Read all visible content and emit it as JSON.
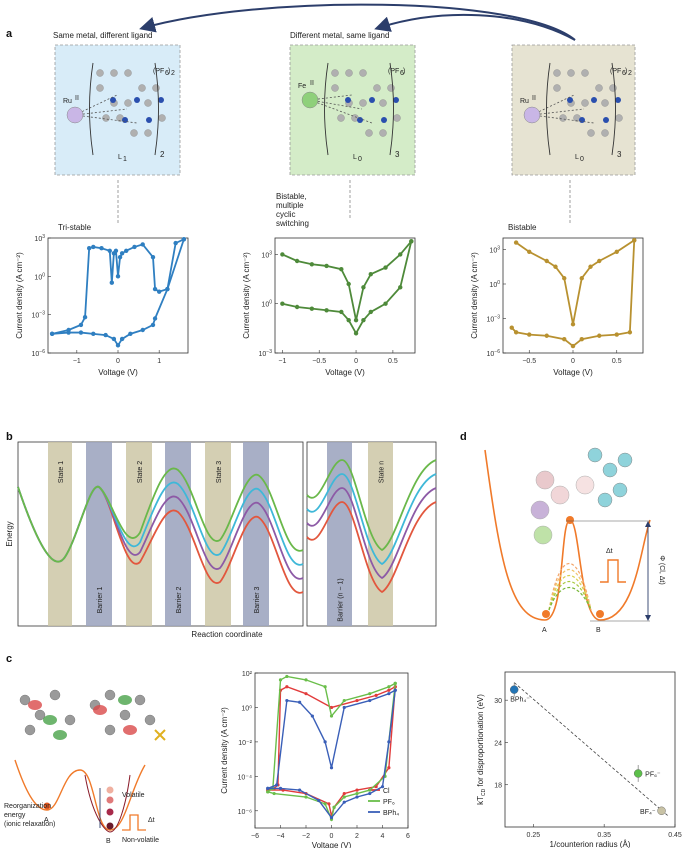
{
  "panels": {
    "a": "a",
    "b": "b",
    "c": "c",
    "d": "d"
  },
  "panel_a": {
    "top_left_title": "Same metal, different ligand",
    "top_mid_title": "Different metal, same ligand",
    "complexes": [
      {
        "metal": "Ru",
        "metal_ox": "II",
        "counter": "(PF",
        "counter_sub": "6",
        "counter_tail": ")",
        "counter_n": "2",
        "ligand": "L",
        "ligand_sub": "1",
        "n": "2",
        "bg": "#d8ecf8",
        "ball": "#c9b6e6"
      },
      {
        "metal": "Fe",
        "metal_ox": "II",
        "counter": "(PF",
        "counter_sub": "6",
        "counter_tail": ")",
        "counter_n": "",
        "ligand": "L",
        "ligand_sub": "0",
        "n": "3",
        "bg": "#d4ecc8",
        "ball": "#8ed07a"
      },
      {
        "metal": "Ru",
        "metal_ox": "II",
        "counter": "(PF",
        "counter_sub": "6",
        "counter_tail": ")",
        "counter_n": "2",
        "ligand": "L",
        "ligand_sub": "0",
        "n": "3",
        "bg": "#e6e3d2",
        "ball": "#c9b6e6"
      }
    ],
    "chart_labels": [
      "Tri-stable",
      "Bistable,\nmultiple\ncyclic\nswitching",
      "Bistable"
    ],
    "label_lines_mid": [
      "Bistable,",
      "multiple",
      "cyclic",
      "switching"
    ]
  },
  "chart_data": [
    {
      "type": "line",
      "title": "Tri-stable",
      "xlabel": "Voltage (V)",
      "ylabel": "Current density (A cm⁻²)",
      "xlim": [
        -1.7,
        1.7
      ],
      "xticks": [
        -1,
        0,
        1
      ],
      "xtick_labels": [
        "−1",
        "0",
        "1"
      ],
      "ylog": true,
      "ylim_exp": [
        -6,
        3
      ],
      "ytick_exps": [
        3,
        0,
        -3,
        -6
      ],
      "color": "#2f7fc1",
      "x": [
        -1.6,
        -1.2,
        -0.9,
        -0.8,
        -0.7,
        -0.6,
        -0.4,
        -0.2,
        -0.15,
        -0.1,
        -0.05,
        0,
        0.05,
        0.1,
        0.2,
        0.4,
        0.6,
        0.85,
        0.9,
        1.0,
        1.2,
        1.4,
        1.6
      ],
      "y_exp": [
        -4.5,
        -4.2,
        -3.8,
        -3.2,
        2.2,
        2.3,
        2.2,
        2.0,
        -0.5,
        1.8,
        2.0,
        0.0,
        1.5,
        1.8,
        2.0,
        2.3,
        2.5,
        1.5,
        -1.0,
        -1.2,
        -1.0,
        2.6,
        2.9
      ],
      "ret_x": [
        1.6,
        1.2,
        0.9,
        0.85,
        0.6,
        0.3,
        0.1,
        0,
        -0.1,
        -0.3,
        -0.6,
        -0.9,
        -1.2,
        -1.6
      ],
      "ret_y_exp": [
        2.9,
        -1.0,
        -3.3,
        -3.8,
        -4.2,
        -4.5,
        -4.9,
        -5.4,
        -4.9,
        -4.6,
        -4.5,
        -4.4,
        -4.4,
        -4.5
      ]
    },
    {
      "type": "line",
      "title": "Bistable, multiple cyclic switching",
      "xlabel": "Voltage (V)",
      "ylabel": "Current density (A cm⁻²)",
      "xlim": [
        -1.1,
        0.8
      ],
      "xticks": [
        -1,
        -0.5,
        0,
        0.5
      ],
      "xtick_labels": [
        "−1",
        "−0.5",
        "0",
        "0.5"
      ],
      "ylog": true,
      "ylim_exp": [
        -3,
        4
      ],
      "ytick_exps": [
        3,
        0,
        -3
      ],
      "color": "#4e8a3a",
      "x": [
        -1.0,
        -0.8,
        -0.6,
        -0.4,
        -0.2,
        -0.1,
        0,
        0.1,
        0.2,
        0.4,
        0.6,
        0.75
      ],
      "y_exp": [
        3.0,
        2.6,
        2.4,
        2.3,
        2.1,
        1.2,
        -1.0,
        1.0,
        1.8,
        2.2,
        3.0,
        3.8
      ],
      "ret_x": [
        0.75,
        0.6,
        0.4,
        0.2,
        0.1,
        0,
        -0.1,
        -0.2,
        -0.4,
        -0.6,
        -0.8,
        -1.0
      ],
      "ret_y_exp": [
        3.8,
        1.0,
        0.0,
        -0.5,
        -1.0,
        -1.8,
        -1.0,
        -0.5,
        -0.4,
        -0.3,
        -0.2,
        0.0
      ]
    },
    {
      "type": "line",
      "title": "Bistable",
      "xlabel": "Voltage (V)",
      "ylabel": "Current density (A cm⁻²)",
      "xlim": [
        -0.8,
        0.8
      ],
      "xticks": [
        -0.5,
        0,
        0.5
      ],
      "xtick_labels": [
        "−0.5",
        "0",
        "0.5"
      ],
      "ylog": true,
      "ylim_exp": [
        -6,
        4
      ],
      "ytick_exps": [
        3,
        0,
        -3,
        -6
      ],
      "color": "#b89130",
      "x": [
        -0.65,
        -0.5,
        -0.3,
        -0.2,
        -0.1,
        0,
        0.1,
        0.2,
        0.3,
        0.5,
        0.7
      ],
      "y_exp": [
        3.6,
        2.8,
        2.0,
        1.5,
        0.5,
        -3.5,
        0.5,
        1.5,
        2.0,
        2.8,
        3.8
      ],
      "ret_x": [
        0.7,
        0.65,
        0.5,
        0.3,
        0.1,
        0,
        -0.1,
        -0.3,
        -0.5,
        -0.65,
        -0.7
      ],
      "ret_y_exp": [
        3.8,
        -4.2,
        -4.4,
        -4.5,
        -4.8,
        -5.4,
        -4.8,
        -4.5,
        -4.4,
        -4.2,
        -3.8
      ]
    },
    {
      "type": "line",
      "xlabel": "Voltage (V)",
      "ylabel": "Current density (A cm⁻²)",
      "xlim": [
        -6,
        6
      ],
      "xticks": [
        -6,
        -4,
        -2,
        0,
        2,
        4,
        6
      ],
      "xtick_labels": [
        "−6",
        "−4",
        "−2",
        "0",
        "2",
        "4",
        "6"
      ],
      "ylog": true,
      "ylim_exp": [
        -7,
        2
      ],
      "ytick_exps": [
        2,
        -2,
        -6
      ],
      "ytick_labels": [
        "10²",
        "10⁻²",
        "10⁻⁶"
      ],
      "ytick_exps_minor": [
        0,
        -4
      ],
      "ytick_labels_minor": [
        "10⁰",
        "10⁻⁴"
      ],
      "series": [
        {
          "name": "Cl",
          "color": "#e23b3b",
          "x": [
            -5,
            -4.5,
            -4.2,
            -4.0,
            -3.5,
            -2,
            0,
            2,
            3.5,
            4.5,
            5
          ],
          "y": [
            -4.8,
            -4.7,
            -4.5,
            1.0,
            1.2,
            0.8,
            0.0,
            0.4,
            0.7,
            1.0,
            1.2
          ],
          "rx": [
            5,
            4.5,
            3.5,
            2,
            1,
            0.2,
            0,
            -0.2,
            -2,
            -3.8,
            -5
          ],
          "ry": [
            1.2,
            -3.5,
            -4.6,
            -4.8,
            -5.0,
            -5.8,
            -6.3,
            -5.6,
            -5.0,
            -4.8,
            -4.8
          ]
        },
        {
          "name": "PF₆",
          "color": "#6abe4a",
          "x": [
            -5,
            -4.6,
            -4.0,
            -3.5,
            -2,
            -0.5,
            0,
            1,
            3,
            4.5,
            5
          ],
          "y": [
            -4.9,
            -4.7,
            1.6,
            1.8,
            1.6,
            1.2,
            -0.5,
            0.4,
            0.8,
            1.2,
            1.4
          ],
          "rx": [
            5,
            4.2,
            3,
            2,
            1,
            0.2,
            0,
            -0.5,
            -2,
            -4.5,
            -5
          ],
          "ry": [
            1.4,
            -4.0,
            -4.8,
            -5.0,
            -5.2,
            -5.8,
            -6.5,
            -5.6,
            -5.2,
            -5.0,
            -4.9
          ]
        },
        {
          "name": "BPh₄",
          "color": "#3a5fb8",
          "x": [
            -5,
            -4.3,
            -3.5,
            -2.5,
            -1.5,
            -0.5,
            0,
            1,
            3,
            4.5,
            5
          ],
          "y": [
            -4.7,
            -4.5,
            0.4,
            0.3,
            -0.5,
            -2.0,
            -3.5,
            0.0,
            0.4,
            0.8,
            1.0
          ],
          "rx": [
            5,
            4.5,
            4.0,
            3,
            2,
            1,
            0,
            -1,
            -2.5,
            -4.0,
            -5
          ],
          "ry": [
            1.0,
            -2.0,
            -4.6,
            -5.0,
            -5.2,
            -5.5,
            -6.4,
            -5.4,
            -4.8,
            -4.7,
            -4.7
          ]
        }
      ]
    },
    {
      "type": "scatter",
      "xlabel": "1/counterion radius (Å)",
      "ylabel": "kT₀₀ for disproportionation (eV)",
      "ylabel_main": "kT",
      "ylabel_sub": "CD",
      "ylabel_rest": " for disproportionation (eV)",
      "xlim": [
        0.21,
        0.45
      ],
      "ylim": [
        12,
        34
      ],
      "xticks": [
        0.25,
        0.35,
        0.45
      ],
      "yticks": [
        18,
        24,
        30
      ],
      "points": [
        {
          "label": "BPh₄⁻",
          "x": 0.223,
          "y": 31.5,
          "err": 1.0,
          "color": "#2274b5"
        },
        {
          "label": "PF₆⁻",
          "x": 0.398,
          "y": 19.6,
          "err": 1.2,
          "color": "#5cbf4a"
        },
        {
          "label": "BF₄⁻",
          "x": 0.431,
          "y": 14.3,
          "err": 0.5,
          "color": "#c8c2a5"
        }
      ],
      "fit_line": {
        "x": [
          0.223,
          0.44
        ],
        "y": [
          32.5,
          13.6
        ]
      }
    }
  ],
  "panel_b": {
    "ylabel": "Energy",
    "xlabel": "Reaction coordinate",
    "states": [
      "State 1",
      "State 2",
      "State 3",
      "State n"
    ],
    "barriers": [
      "Barrier 1",
      "Barrier 2",
      "Barrier 3",
      "Barrier (n − 1)"
    ],
    "curve_colors": [
      "#e2573e",
      "#8d5aa6",
      "#3fb8d8",
      "#6ab84a"
    ],
    "state_color": "#cdc7a6",
    "barrier_color": "#9ea6c0"
  },
  "panel_c": {
    "reorg_label_1": "Reorganization",
    "reorg_label_2": "energy",
    "reorg_label_3": "(ionic relaxation)",
    "volatile": "Volatile",
    "non_volatile": "Non-volatile",
    "dt": "Δt",
    "A": "A",
    "B": "B"
  },
  "panel_d": {
    "A": "A",
    "B": "B",
    "dt": "Δt",
    "phi": "Φ (Cl, Δt)"
  }
}
